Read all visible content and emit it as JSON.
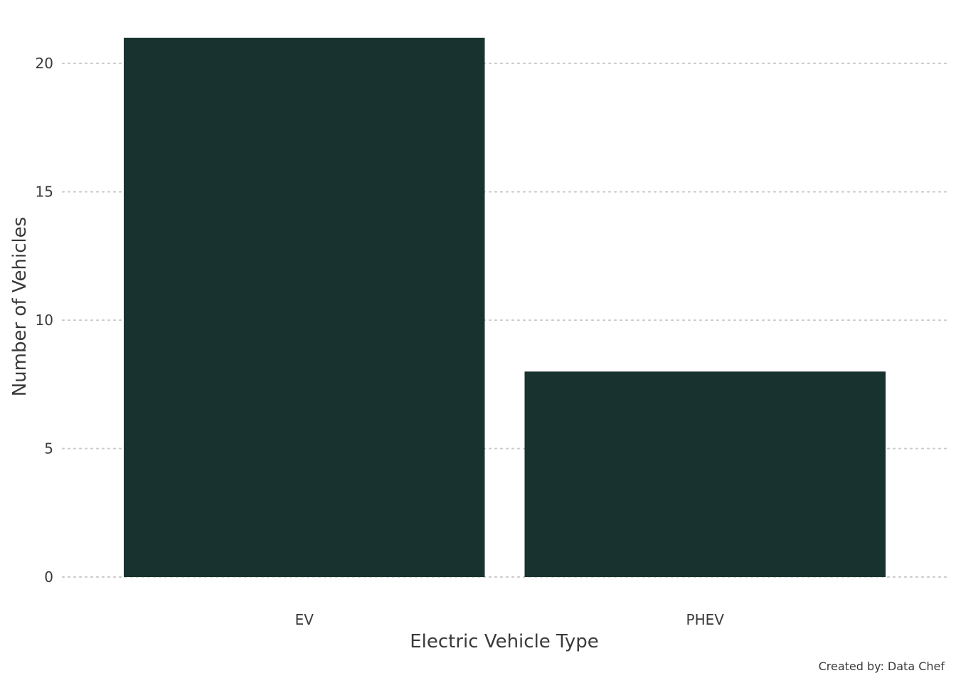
{
  "chart_data": {
    "type": "bar",
    "categories": [
      "EV",
      "PHEV"
    ],
    "values": [
      21,
      8
    ],
    "title": "",
    "xlabel": "Electric Vehicle Type",
    "ylabel": "Number of Vehicles",
    "ylim": [
      0,
      21
    ],
    "yticks": [
      0,
      5,
      10,
      15,
      20
    ],
    "ytick_labels": [
      "0",
      "5",
      "10",
      "15",
      "20"
    ],
    "grid": "horizontal dotted",
    "legend": "none",
    "bar_color": "#18332f",
    "caption": "Created by: Data Chef"
  }
}
